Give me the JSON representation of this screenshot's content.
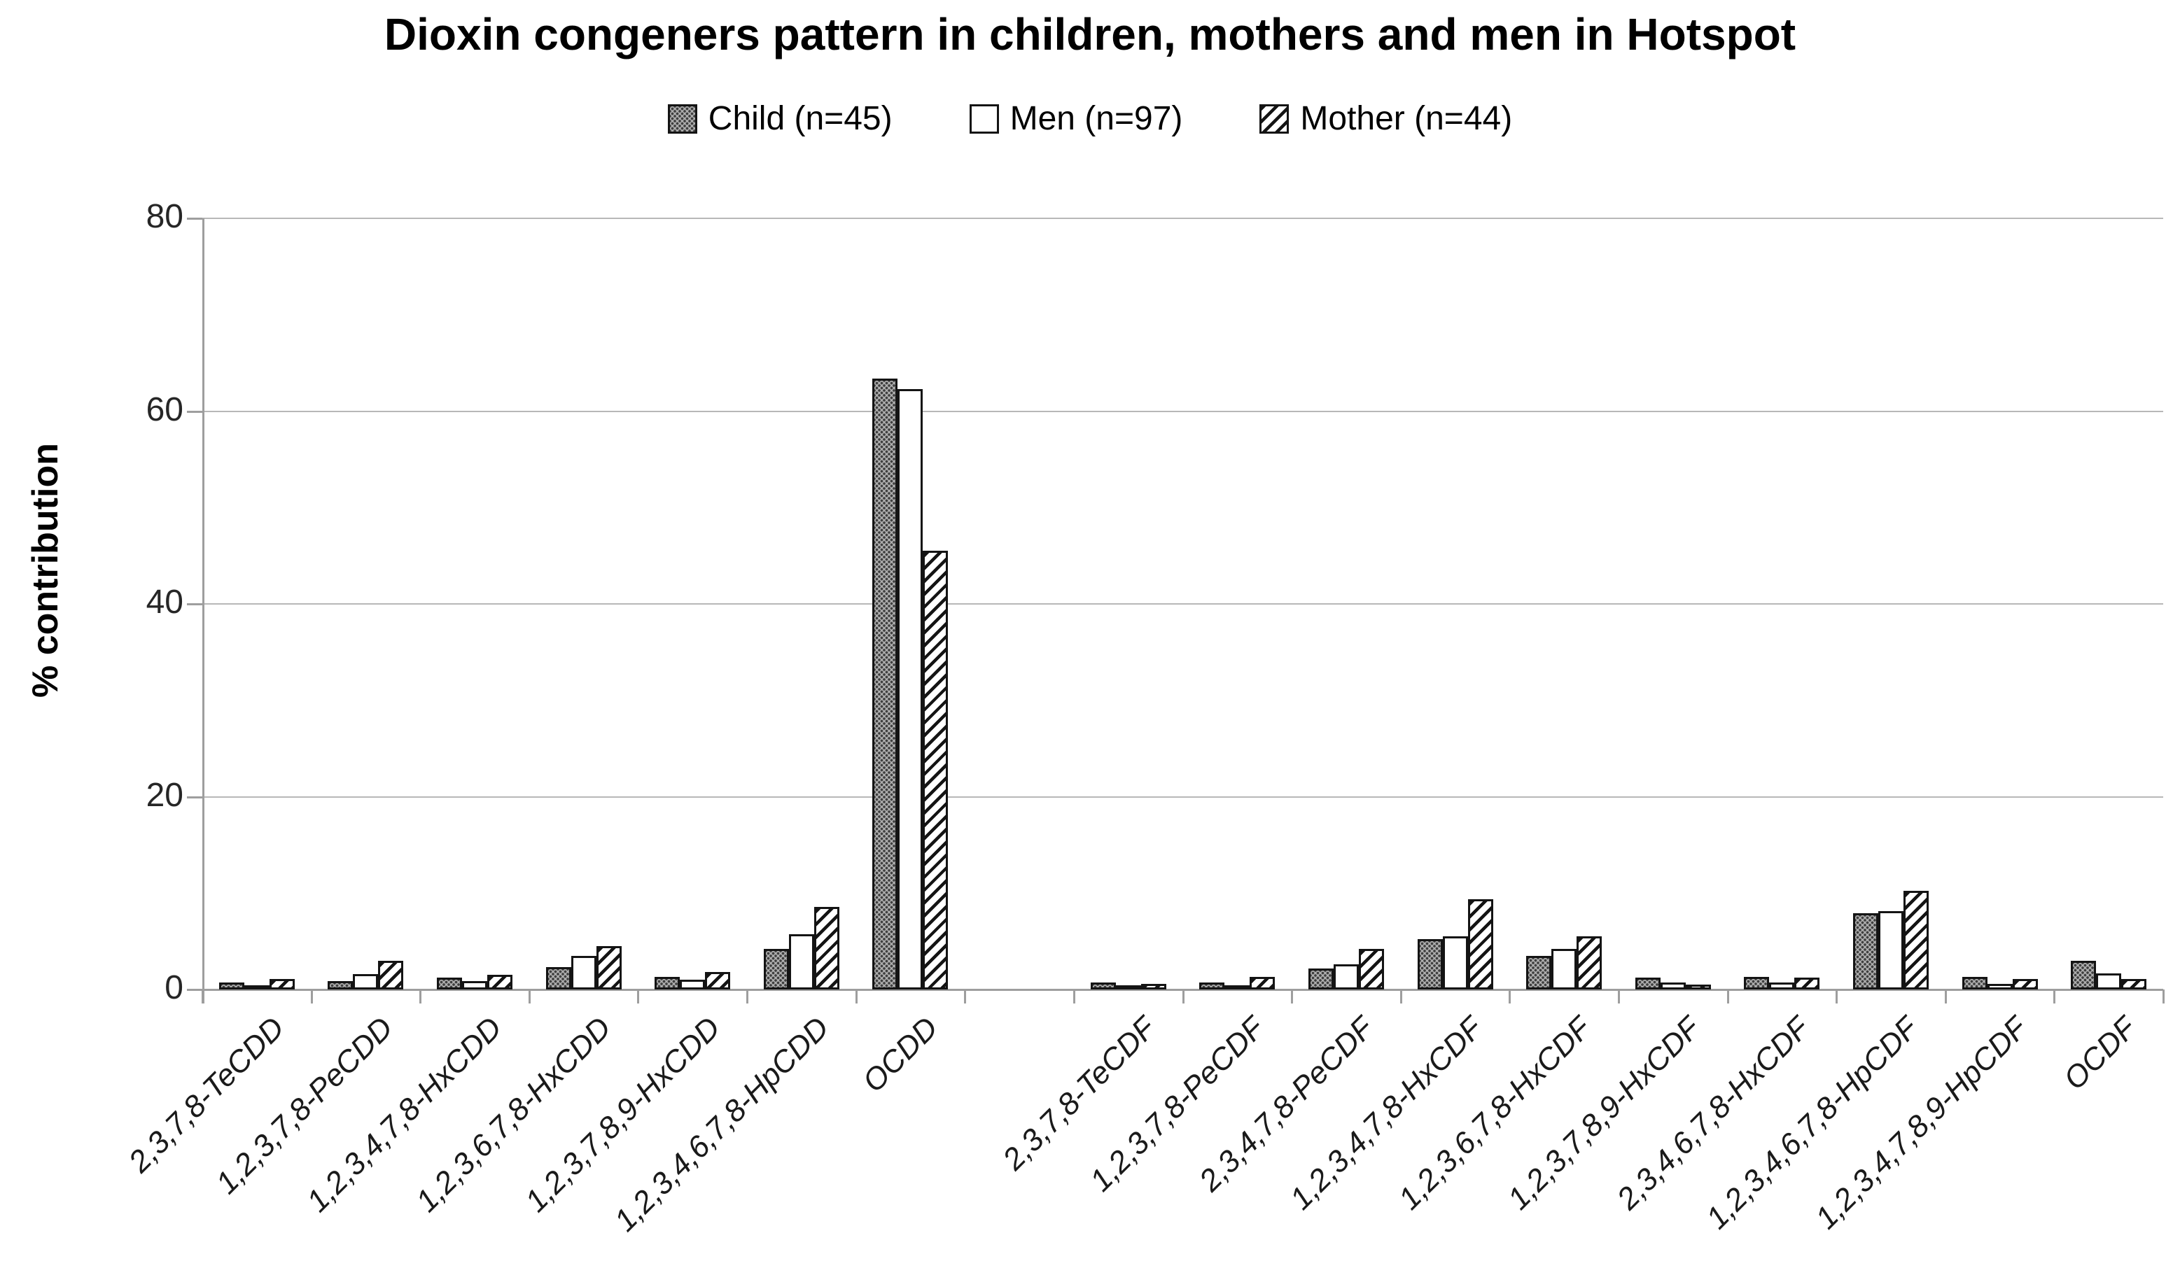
{
  "chart": {
    "title": "Dioxin congeners pattern in children, mothers and men in Hotspot",
    "ylabel": "% contribution"
  },
  "legend": {
    "items": [
      {
        "label": "Child (n=45)",
        "pattern": "gray-dots"
      },
      {
        "label": "Men (n=97)",
        "pattern": "white"
      },
      {
        "label": "Mother (n=44)",
        "pattern": "diagonal-hatch"
      }
    ]
  },
  "chart_data": {
    "type": "bar",
    "title": "Dioxin congeners pattern in children, mothers and men in Hotspot",
    "xlabel": "",
    "ylabel": "% contribution",
    "ylim": [
      0,
      80
    ],
    "yticks": [
      0,
      20,
      40,
      60,
      80
    ],
    "grid": "horizontal",
    "legend_position": "top-center",
    "gap_after_category_index": 6,
    "categories": [
      "2,3,7,8-TeCDD",
      "1,2,3,7,8-PeCDD",
      "1,2,3,4,7,8-HxCDD",
      "1,2,3,6,7,8-HxCDD",
      "1,2,3,7,8,9-HxCDD",
      "1,2,3,4,6,7,8-HpCDD",
      "OCDD",
      "2,3,7,8-TeCDF",
      "1,2,3,7,8-PeCDF",
      "2,3,4,7,8-PeCDF",
      "1,2,3,4,7,8-HxCDF",
      "1,2,3,6,7,8-HxCDF",
      "1,2,3,7,8,9-HxCDF",
      "2,3,4,6,7,8-HxCDF",
      "1,2,3,4,6,7,8-HpCDF",
      "1,2,3,4,7,8,9-HpCDF",
      "OCDF"
    ],
    "series": [
      {
        "name": "Child (n=45)",
        "pattern": "gray-dots",
        "values": [
          0.7,
          0.9,
          1.2,
          2.3,
          1.3,
          4.2,
          63.4,
          0.7,
          0.7,
          2.2,
          5.2,
          3.5,
          1.2,
          1.3,
          7.9,
          1.3,
          3.0
        ]
      },
      {
        "name": "Men (n=97)",
        "pattern": "white",
        "values": [
          0.3,
          1.6,
          0.9,
          3.5,
          1.0,
          5.7,
          62.3,
          0.35,
          0.35,
          2.6,
          5.5,
          4.2,
          0.7,
          0.7,
          8.1,
          0.6,
          1.7
        ]
      },
      {
        "name": "Mother (n=44)",
        "pattern": "diagonal-hatch",
        "values": [
          1.1,
          3.0,
          1.5,
          4.5,
          1.8,
          8.6,
          45.5,
          0.6,
          1.3,
          4.2,
          9.4,
          5.5,
          0.5,
          1.2,
          10.2,
          1.1,
          1.1
        ]
      }
    ],
    "colors": {
      "bar_outline": "#141414",
      "axis": "#9e9e9e",
      "gridline": "#b8b8b8",
      "text": "#1a1a1a"
    }
  }
}
